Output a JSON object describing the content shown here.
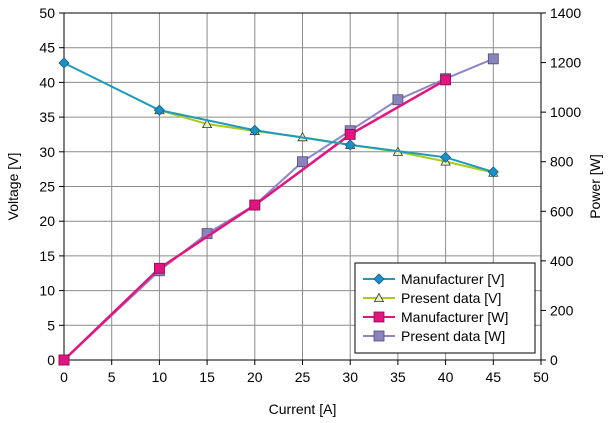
{
  "chart_data": {
    "type": "line",
    "xlabel": "Current [A]",
    "ylabel_left": "Voltage [V]",
    "ylabel_right": "Power [W]",
    "xlim": [
      0,
      50
    ],
    "x_ticks": [
      0,
      5,
      10,
      15,
      20,
      25,
      30,
      35,
      40,
      45,
      50
    ],
    "ylim_left": [
      0,
      50
    ],
    "y_left_ticks": [
      0,
      5,
      10,
      15,
      20,
      25,
      30,
      35,
      40,
      45,
      50
    ],
    "ylim_right": [
      0,
      1400
    ],
    "y_right_ticks": [
      0,
      200,
      400,
      600,
      800,
      1000,
      1200,
      1400
    ],
    "grid": true,
    "legend_position": "bottom-right",
    "series": [
      {
        "name": "Manufacturer [V]",
        "axis": "left",
        "color": "#1f9bb8",
        "marker": "diamond",
        "marker_color": "#1b8fc6",
        "x": [
          0,
          10,
          20,
          30,
          40,
          45
        ],
        "y": [
          42.8,
          36.0,
          33.1,
          31.0,
          29.2,
          27.1
        ]
      },
      {
        "name": "Present data [V]",
        "axis": "left",
        "color": "#a8cc1a",
        "marker": "triangle",
        "marker_color": "#e6efc0",
        "x": [
          10,
          15,
          20,
          25,
          30,
          35,
          40,
          45
        ],
        "y": [
          36.0,
          34.0,
          33.0,
          32.1,
          31.0,
          30.0,
          28.6,
          27.0
        ]
      },
      {
        "name": "Manufacturer [W]",
        "axis": "right",
        "color": "#e0157e",
        "marker": "square",
        "marker_color": "#e0157e",
        "x": [
          0,
          10,
          20,
          30,
          40
        ],
        "y": [
          0,
          370,
          625,
          910,
          1130
        ]
      },
      {
        "name": "Present data [W]",
        "axis": "right",
        "color": "#8f86c6",
        "marker": "square",
        "marker_color": "#8a84bd",
        "x": [
          0,
          10,
          15,
          20,
          25,
          30,
          35,
          40,
          45
        ],
        "y": [
          0,
          360,
          510,
          625,
          800,
          925,
          1050,
          1135,
          1215
        ]
      }
    ]
  }
}
